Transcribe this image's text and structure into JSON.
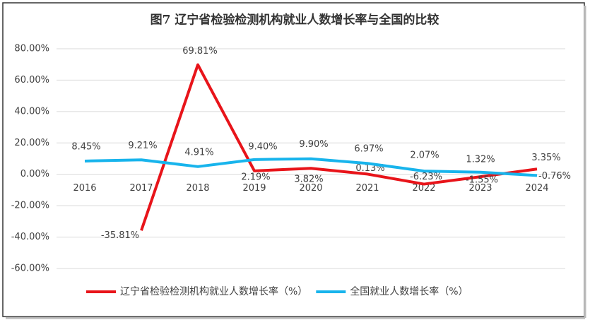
{
  "chart_data": {
    "type": "line",
    "title": "图7  辽宁省检验检测机构就业人数增长率与全国的比较",
    "categories": [
      "2016",
      "2017",
      "2018",
      "2019",
      "2020",
      "2021",
      "2022",
      "2023",
      "2024"
    ],
    "series": [
      {
        "name": "辽宁省检验检测机构就业人数增长率（%）",
        "color": "#e8141a",
        "values": [
          null,
          -35.81,
          69.81,
          2.19,
          3.82,
          0.13,
          -6.23,
          -1.55,
          3.35
        ],
        "value_labels": [
          null,
          "-35.81%",
          "69.81%",
          "2.19%",
          "3.82%",
          "0.13%",
          "-6.23%",
          "-1.55%",
          "3.35%"
        ]
      },
      {
        "name": "全国就业人数增长率（%）",
        "color": "#18b4ec",
        "values": [
          8.45,
          9.21,
          4.91,
          9.4,
          9.9,
          6.97,
          2.07,
          1.32,
          -0.76
        ],
        "value_labels": [
          "8.45%",
          "9.21%",
          "4.91%",
          "9.40%",
          "9.90%",
          "6.97%",
          "2.07%",
          "1.32%",
          "-0.76%"
        ]
      }
    ],
    "ylim": [
      -60,
      80
    ],
    "yticks": [
      {
        "value": -60,
        "label": "-60.00%"
      },
      {
        "value": -40,
        "label": "-40.00%"
      },
      {
        "value": -20,
        "label": "-20.00%"
      },
      {
        "value": 0,
        "label": "0.00%"
      },
      {
        "value": 20,
        "label": "20.00%"
      },
      {
        "value": 40,
        "label": "40.00%"
      },
      {
        "value": 60,
        "label": "60.00%"
      },
      {
        "value": 80,
        "label": "80.00%"
      }
    ],
    "grid": true,
    "legend": "bottom"
  }
}
